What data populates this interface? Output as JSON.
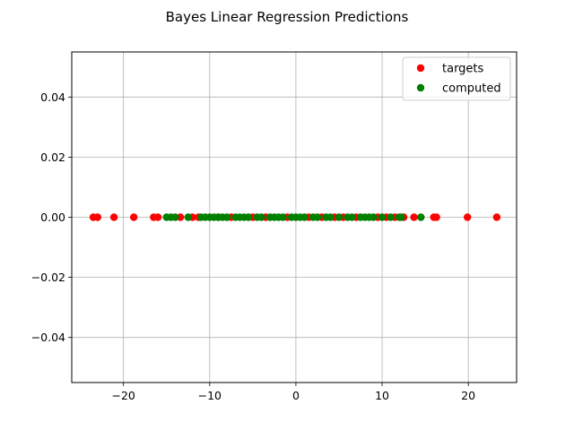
{
  "chart_data": {
    "type": "scatter",
    "title": "Bayes Linear Regression Predictions",
    "xlabel": "",
    "ylabel": "",
    "xlim": [
      -26,
      25.6
    ],
    "ylim": [
      -0.055,
      0.055
    ],
    "x_ticks": [
      -20,
      -10,
      0,
      10,
      20
    ],
    "x_tick_labels": [
      "−20",
      "−10",
      "0",
      "10",
      "20"
    ],
    "y_ticks": [
      -0.04,
      -0.02,
      0.0,
      0.02,
      0.04
    ],
    "y_tick_labels": [
      "−0.04",
      "−0.02",
      "0.00",
      "0.02",
      "0.04"
    ],
    "grid": true,
    "legend_position": "top-right",
    "series": [
      {
        "name": "targets",
        "color": "#ff0000",
        "x": [
          -23.5,
          -23.0,
          -21.1,
          -18.8,
          -16.5,
          -16.0,
          -13.4,
          -12.0,
          -11.3,
          -9.0,
          -7.5,
          -5.0,
          -3.5,
          -1.0,
          1.5,
          3.0,
          4.5,
          5.5,
          7.0,
          9.5,
          10.5,
          11.5,
          12.5,
          13.7,
          16.0,
          16.3,
          19.9,
          23.3
        ],
        "y": [
          0,
          0,
          0,
          0,
          0,
          0,
          0,
          0,
          0,
          0,
          0,
          0,
          0,
          0,
          0,
          0,
          0,
          0,
          0,
          0,
          0,
          0,
          0,
          0,
          0,
          0,
          0,
          0
        ]
      },
      {
        "name": "computed",
        "color": "#008000",
        "x": [
          -15.0,
          -14.5,
          -14.0,
          -12.5,
          -11.0,
          -10.5,
          -10.0,
          -9.5,
          -9.0,
          -8.5,
          -8.0,
          -7.0,
          -6.5,
          -6.0,
          -5.5,
          -4.5,
          -4.0,
          -3.0,
          -2.5,
          -2.0,
          -1.5,
          -0.5,
          0.0,
          0.5,
          1.0,
          2.0,
          2.5,
          3.5,
          4.0,
          5.0,
          6.0,
          6.5,
          7.5,
          8.0,
          8.5,
          9.0,
          10.0,
          11.0,
          12.0,
          12.2,
          14.5
        ],
        "y": [
          0,
          0,
          0,
          0,
          0,
          0,
          0,
          0,
          0,
          0,
          0,
          0,
          0,
          0,
          0,
          0,
          0,
          0,
          0,
          0,
          0,
          0,
          0,
          0,
          0,
          0,
          0,
          0,
          0,
          0,
          0,
          0,
          0,
          0,
          0,
          0,
          0,
          0,
          0,
          0,
          0
        ]
      }
    ]
  }
}
